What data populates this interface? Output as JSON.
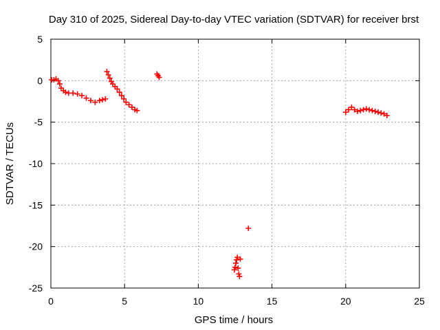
{
  "chart_data": {
    "type": "scatter",
    "title": "Day 310 of 2025, Sidereal Day-to-day VTEC variation (SDTVAR) for receiver brst",
    "xlabel": "GPS time / hours",
    "ylabel": "SDTVAR / TECUs",
    "xlim": [
      0,
      25
    ],
    "ylim": [
      -25,
      5
    ],
    "xticks": [
      0,
      5,
      10,
      15,
      20,
      25
    ],
    "yticks": [
      -25,
      -20,
      -15,
      -10,
      -5,
      0,
      5
    ],
    "grid": true,
    "marker": "+",
    "colors": {
      "series": "#ff0000",
      "grid": "#a0a0a0",
      "axes": "#000000"
    },
    "series": [
      {
        "name": "SDTVAR",
        "points": [
          [
            0.05,
            0.1
          ],
          [
            0.2,
            0.1
          ],
          [
            0.35,
            0.2
          ],
          [
            0.5,
            0.0
          ],
          [
            0.6,
            -0.4
          ],
          [
            0.7,
            -0.9
          ],
          [
            0.85,
            -1.2
          ],
          [
            1.0,
            -1.4
          ],
          [
            1.2,
            -1.5
          ],
          [
            1.5,
            -1.5
          ],
          [
            1.8,
            -1.6
          ],
          [
            2.1,
            -1.8
          ],
          [
            2.4,
            -2.1
          ],
          [
            2.7,
            -2.4
          ],
          [
            3.0,
            -2.6
          ],
          [
            3.3,
            -2.4
          ],
          [
            3.5,
            -2.3
          ],
          [
            3.7,
            -2.2
          ],
          [
            3.8,
            1.1
          ],
          [
            3.9,
            0.7
          ],
          [
            4.0,
            0.3
          ],
          [
            4.1,
            -0.1
          ],
          [
            4.2,
            -0.4
          ],
          [
            4.35,
            -0.7
          ],
          [
            4.5,
            -1.0
          ],
          [
            4.65,
            -1.4
          ],
          [
            4.8,
            -1.8
          ],
          [
            4.95,
            -2.2
          ],
          [
            5.1,
            -2.6
          ],
          [
            5.3,
            -2.9
          ],
          [
            5.5,
            -3.2
          ],
          [
            5.7,
            -3.5
          ],
          [
            5.85,
            -3.6
          ],
          [
            7.2,
            0.8
          ],
          [
            7.28,
            0.6
          ],
          [
            7.35,
            0.4
          ],
          [
            12.45,
            -22.8
          ],
          [
            12.5,
            -22.5
          ],
          [
            12.55,
            -22.0
          ],
          [
            12.6,
            -21.6
          ],
          [
            12.65,
            -21.3
          ],
          [
            12.7,
            -22.6
          ],
          [
            12.75,
            -23.3
          ],
          [
            12.8,
            -23.6
          ],
          [
            12.85,
            -21.5
          ],
          [
            13.4,
            -17.8
          ],
          [
            20.0,
            -3.8
          ],
          [
            20.2,
            -3.5
          ],
          [
            20.4,
            -3.2
          ],
          [
            20.6,
            -3.5
          ],
          [
            20.8,
            -3.7
          ],
          [
            21.0,
            -3.6
          ],
          [
            21.2,
            -3.5
          ],
          [
            21.4,
            -3.4
          ],
          [
            21.6,
            -3.5
          ],
          [
            21.8,
            -3.6
          ],
          [
            22.0,
            -3.7
          ],
          [
            22.2,
            -3.8
          ],
          [
            22.4,
            -3.9
          ],
          [
            22.6,
            -4.0
          ],
          [
            22.8,
            -4.2
          ]
        ]
      }
    ]
  }
}
